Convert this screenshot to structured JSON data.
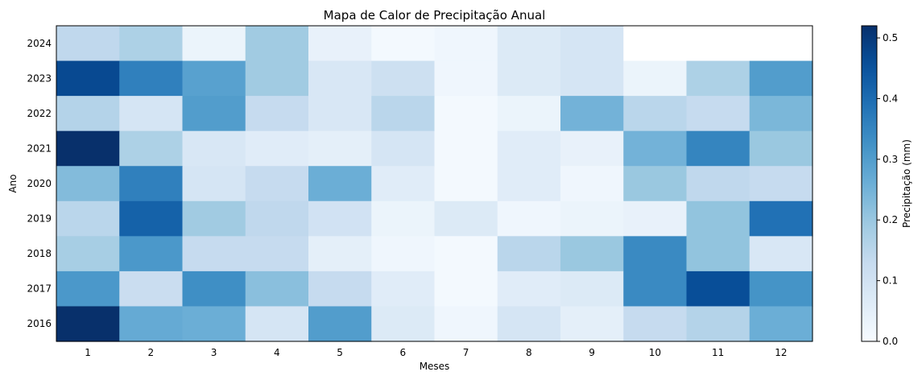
{
  "chart_data": {
    "type": "heatmap",
    "title": "Mapa de Calor de Precipitação Anual",
    "xlabel": "Meses",
    "ylabel": "Ano",
    "x": [
      "1",
      "2",
      "3",
      "4",
      "5",
      "6",
      "7",
      "8",
      "9",
      "10",
      "11",
      "12"
    ],
    "y": [
      "2024",
      "2023",
      "2022",
      "2021",
      "2020",
      "2019",
      "2018",
      "2017",
      "2016"
    ],
    "values": [
      [
        0.14,
        0.17,
        0.03,
        0.19,
        0.04,
        0.01,
        0.02,
        0.07,
        0.09,
        null,
        null,
        null
      ],
      [
        0.47,
        0.36,
        0.29,
        0.19,
        0.08,
        0.11,
        0.02,
        0.07,
        0.09,
        0.03,
        0.17,
        0.3
      ],
      [
        0.16,
        0.09,
        0.3,
        0.13,
        0.08,
        0.15,
        0.01,
        0.03,
        0.25,
        0.15,
        0.13,
        0.24
      ],
      [
        0.52,
        0.17,
        0.08,
        0.06,
        0.05,
        0.09,
        0.01,
        0.06,
        0.04,
        0.25,
        0.35,
        0.2
      ],
      [
        0.23,
        0.36,
        0.09,
        0.13,
        0.26,
        0.06,
        0.01,
        0.06,
        0.02,
        0.2,
        0.14,
        0.13
      ],
      [
        0.15,
        0.42,
        0.19,
        0.14,
        0.1,
        0.03,
        0.07,
        0.02,
        0.03,
        0.04,
        0.21,
        0.39
      ],
      [
        0.18,
        0.31,
        0.13,
        0.13,
        0.05,
        0.02,
        0.01,
        0.15,
        0.2,
        0.34,
        0.21,
        0.08
      ],
      [
        0.31,
        0.12,
        0.33,
        0.22,
        0.13,
        0.06,
        0.01,
        0.06,
        0.07,
        0.34,
        0.46,
        0.32
      ],
      [
        0.52,
        0.27,
        0.26,
        0.09,
        0.3,
        0.07,
        0.02,
        0.09,
        0.05,
        0.13,
        0.16,
        0.26
      ]
    ],
    "colorscale": "Blues",
    "vmin": 0.0,
    "vmax": 0.52,
    "colorbar": {
      "label": "Precipitação (mm)",
      "ticks": [
        "0.0",
        "0.1",
        "0.2",
        "0.3",
        "0.4",
        "0.5"
      ]
    },
    "grid": false
  }
}
